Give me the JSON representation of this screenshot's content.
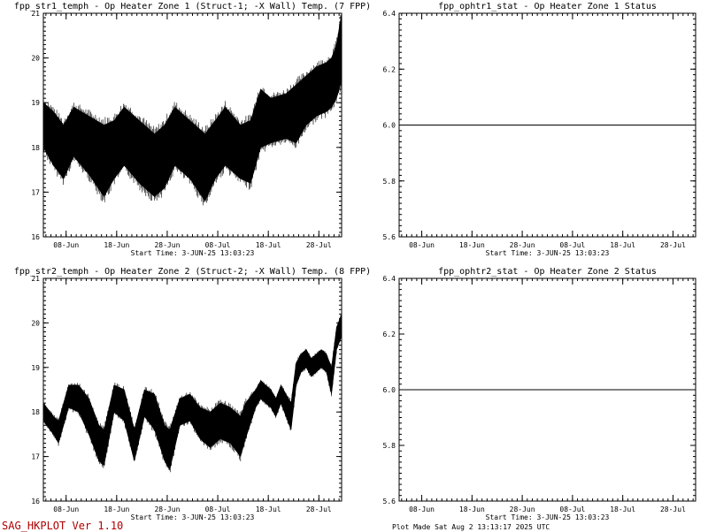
{
  "chart_data": [
    {
      "type": "line",
      "title": "fpp_str1_temph - Op Heater Zone 1 (Struct-1; -X Wall) Temp. (7 FPP)",
      "start_time": "Start Time:  3-JUN-25  13:03:23",
      "ylim": [
        16,
        21
      ],
      "yticks": [
        "16",
        "17",
        "18",
        "19",
        "20",
        "21"
      ],
      "xlim": [
        0,
        59
      ],
      "xtick_labels": [
        "08-Jun",
        "18-Jun",
        "28-Jun",
        "08-Jul",
        "18-Jul",
        "28-Jul"
      ],
      "xtick_days": [
        4.5,
        14.5,
        24.5,
        34.5,
        44.5,
        54.5
      ],
      "series": [
        {
          "x": [
            0,
            2,
            4,
            6,
            9,
            12,
            14,
            16,
            19,
            22,
            24,
            26,
            29,
            32,
            34,
            36,
            39,
            41,
            43,
            45,
            48,
            50,
            52,
            54,
            56,
            57,
            58,
            59
          ],
          "upper": [
            19.0,
            18.8,
            18.5,
            18.9,
            18.7,
            18.5,
            18.6,
            18.9,
            18.6,
            18.3,
            18.5,
            18.9,
            18.6,
            18.3,
            18.6,
            18.9,
            18.5,
            18.6,
            19.3,
            19.1,
            19.2,
            19.4,
            19.6,
            19.8,
            19.9,
            20.0,
            20.3,
            21.0
          ],
          "lower": [
            18.0,
            17.6,
            17.3,
            17.8,
            17.4,
            16.9,
            17.3,
            17.6,
            17.2,
            16.9,
            17.1,
            17.6,
            17.3,
            16.8,
            17.3,
            17.6,
            17.3,
            17.2,
            18.0,
            18.1,
            18.2,
            18.1,
            18.5,
            18.7,
            18.8,
            18.9,
            19.1,
            19.5
          ]
        }
      ]
    },
    {
      "type": "line",
      "title": "fpp_ophtr1_stat - Op Heater Zone 1 Status",
      "start_time": "Start Time:  3-JUN-25  13:03:23",
      "ylim": [
        5.6,
        6.4
      ],
      "yticks": [
        "5.6",
        "5.8",
        "6.0",
        "6.2",
        "6.4"
      ],
      "xlim": [
        0,
        59
      ],
      "xtick_labels": [
        "08-Jun",
        "18-Jun",
        "28-Jun",
        "08-Jul",
        "18-Jul",
        "28-Jul"
      ],
      "xtick_days": [
        4.5,
        14.5,
        24.5,
        34.5,
        44.5,
        54.5
      ],
      "series": [
        {
          "x": [
            0,
            59
          ],
          "y": [
            6.0,
            6.0
          ]
        }
      ]
    },
    {
      "type": "line",
      "title": "fpp_str2_temph - Op Heater Zone 2 (Struct-2; -X Wall) Temp. (8 FPP)",
      "start_time": "Start Time:  3-JUN-25  13:03:23",
      "ylim": [
        16,
        21
      ],
      "yticks": [
        "16",
        "17",
        "18",
        "19",
        "20",
        "21"
      ],
      "xlim": [
        0,
        59
      ],
      "xtick_labels": [
        "08-Jun",
        "18-Jun",
        "28-Jun",
        "08-Jul",
        "18-Jul",
        "28-Jul"
      ],
      "xtick_days": [
        4.5,
        14.5,
        24.5,
        34.5,
        44.5,
        54.5
      ],
      "series": [
        {
          "x": [
            0,
            2,
            3,
            5,
            7,
            9,
            11,
            12,
            14,
            16,
            18,
            20,
            22,
            24,
            25,
            27,
            29,
            31,
            33,
            35,
            37,
            39,
            40,
            42,
            43,
            44,
            45,
            46,
            47,
            48,
            49,
            50,
            51,
            52,
            53,
            54,
            55,
            56,
            57,
            58,
            59
          ],
          "upper": [
            18.2,
            17.9,
            17.8,
            18.6,
            18.6,
            18.3,
            17.7,
            17.6,
            18.6,
            18.5,
            17.6,
            18.5,
            18.4,
            17.7,
            17.6,
            18.3,
            18.4,
            18.1,
            18.0,
            18.2,
            18.1,
            17.9,
            18.2,
            18.5,
            18.7,
            18.6,
            18.5,
            18.3,
            18.6,
            18.4,
            18.2,
            19.1,
            19.3,
            19.4,
            19.2,
            19.3,
            19.4,
            19.3,
            19.0,
            19.9,
            20.2
          ],
          "lower": [
            17.8,
            17.5,
            17.3,
            18.1,
            18.0,
            17.5,
            16.9,
            16.8,
            18.0,
            17.8,
            16.9,
            17.9,
            17.6,
            16.9,
            16.7,
            17.7,
            17.8,
            17.4,
            17.2,
            17.4,
            17.3,
            17.0,
            17.4,
            18.1,
            18.3,
            18.2,
            18.1,
            17.9,
            18.2,
            17.9,
            17.6,
            18.6,
            18.9,
            19.0,
            18.8,
            18.9,
            19.0,
            18.9,
            18.4,
            19.4,
            19.7
          ]
        }
      ]
    },
    {
      "type": "line",
      "title": "fpp_ophtr2_stat - Op Heater Zone 2 Status",
      "start_time": "Start Time:  3-JUN-25  13:03:23",
      "ylim": [
        5.6,
        6.4
      ],
      "yticks": [
        "5.6",
        "5.8",
        "6.0",
        "6.2",
        "6.4"
      ],
      "xlim": [
        0,
        59
      ],
      "xtick_labels": [
        "08-Jun",
        "18-Jun",
        "28-Jun",
        "08-Jul",
        "18-Jul",
        "28-Jul"
      ],
      "xtick_days": [
        4.5,
        14.5,
        24.5,
        34.5,
        44.5,
        54.5
      ],
      "series": [
        {
          "x": [
            0,
            59
          ],
          "y": [
            6.0,
            6.0
          ]
        }
      ]
    }
  ],
  "footer": {
    "program": "SAG_HKPLOT  Ver 1.10",
    "plot_made": "Plot Made Sat Aug  2 13:13:17 2025 UTC"
  }
}
